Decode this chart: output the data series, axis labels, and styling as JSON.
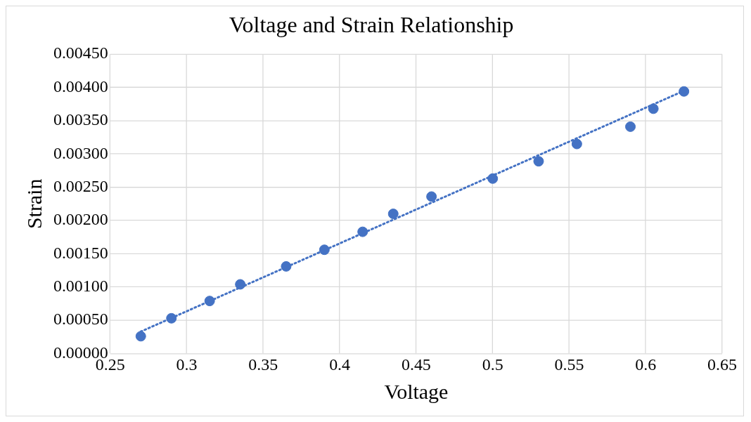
{
  "chart_data": {
    "type": "scatter",
    "title": "Voltage and Strain Relationship",
    "xlabel": "Voltage",
    "ylabel": "Strain",
    "xlim": [
      0.25,
      0.65
    ],
    "xticks": [
      0.25,
      0.3,
      0.35,
      0.4,
      0.45,
      0.5,
      0.55,
      0.6,
      0.65
    ],
    "ylim": [
      0,
      0.0045
    ],
    "yticks": [
      {
        "value": 0,
        "label": "0.00000"
      },
      {
        "value": 0.0005,
        "label": "0.00050"
      },
      {
        "value": 0.001,
        "label": "0.00100"
      },
      {
        "value": 0.0015,
        "label": "0.00150"
      },
      {
        "value": 0.002,
        "label": "0.00200"
      },
      {
        "value": 0.0025,
        "label": "0.00250"
      },
      {
        "value": 0.003,
        "label": "0.00300"
      },
      {
        "value": 0.0035,
        "label": "0.00350"
      },
      {
        "value": 0.004,
        "label": "0.00400"
      },
      {
        "value": 0.0045,
        "label": "0.00450"
      }
    ],
    "grid": true,
    "legend": false,
    "series": [
      {
        "color": "#4472c4",
        "marker": "circle",
        "x": [
          0.27,
          0.29,
          0.315,
          0.335,
          0.365,
          0.39,
          0.415,
          0.435,
          0.46,
          0.5,
          0.53,
          0.555,
          0.59,
          0.605,
          0.625
        ],
        "values": [
          0.00026,
          0.00053,
          0.00079,
          0.00104,
          0.00131,
          0.00156,
          0.00183,
          0.0021,
          0.00236,
          0.00263,
          0.00289,
          0.00315,
          0.00341,
          0.00368,
          0.00394
        ]
      },
      {
        "type": "line",
        "color": "#4472c4",
        "marker": "none",
        "line_style": "dotted",
        "x": [
          0.27,
          0.625
        ],
        "values": [
          0.00033,
          0.00395
        ]
      }
    ]
  }
}
